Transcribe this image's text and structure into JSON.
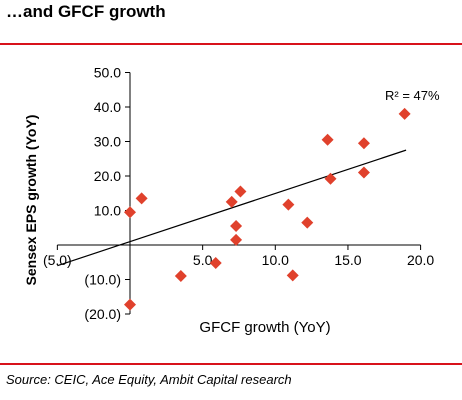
{
  "header": {
    "title": "…and GFCF growth"
  },
  "footer": {
    "source": "Source: CEIC, Ace Equity, Ambit Capital research"
  },
  "colors": {
    "marker": "#e0412c",
    "rule": "#d8121b",
    "trendline": "#000000"
  },
  "chart_data": {
    "type": "scatter",
    "title": "…and GFCF growth",
    "xlabel": "GFCF growth (YoY)",
    "ylabel": "Sensex EPS growth (YoY)",
    "xlim": [
      -5,
      20
    ],
    "ylim": [
      -20,
      50
    ],
    "x_ticks": [
      -5,
      5,
      10,
      15,
      20
    ],
    "x_tick_labels": [
      "(5.0)",
      "5.0",
      "10.0",
      "15.0",
      "20.0"
    ],
    "y_ticks": [
      -20,
      -10,
      10,
      20,
      30,
      40,
      50
    ],
    "y_tick_labels": [
      "(20.0)",
      "(10.0)",
      "10.0",
      "20.0",
      "30.0",
      "40.0",
      "50.0"
    ],
    "grid": false,
    "annotation": "R² = 47%",
    "points": [
      {
        "x": 0.0,
        "y": 9.5
      },
      {
        "x": 0.8,
        "y": 13.5
      },
      {
        "x": 0.0,
        "y": -17.3
      },
      {
        "x": 3.5,
        "y": -9.0
      },
      {
        "x": 5.9,
        "y": -5.2
      },
      {
        "x": 7.0,
        "y": 12.5
      },
      {
        "x": 7.3,
        "y": 5.5
      },
      {
        "x": 7.3,
        "y": 1.5
      },
      {
        "x": 7.6,
        "y": 15.5
      },
      {
        "x": 10.9,
        "y": 11.7
      },
      {
        "x": 11.2,
        "y": -8.8
      },
      {
        "x": 12.2,
        "y": 6.5
      },
      {
        "x": 13.6,
        "y": 30.5
      },
      {
        "x": 13.8,
        "y": 19.2
      },
      {
        "x": 16.1,
        "y": 29.5
      },
      {
        "x": 16.1,
        "y": 21.0
      },
      {
        "x": 18.9,
        "y": 38.0
      }
    ],
    "trendline": {
      "x": [
        -5,
        19
      ],
      "y": [
        -6.0,
        27.5
      ]
    }
  }
}
